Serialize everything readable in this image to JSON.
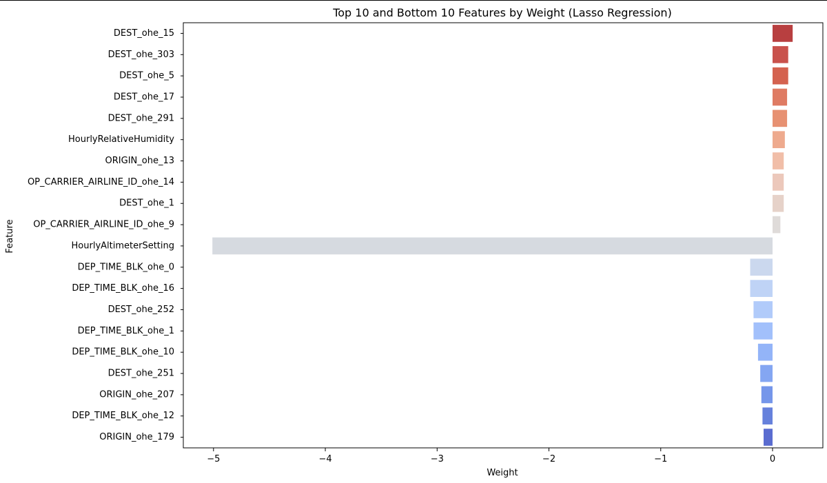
{
  "chart_data": {
    "type": "bar",
    "orientation": "horizontal",
    "title": "Top 10 and Bottom 10 Features by Weight (Lasso Regression)",
    "xlabel": "Weight",
    "ylabel": "Feature",
    "xlim": [
      -5.27,
      0.45
    ],
    "xticks": [
      -5,
      -4,
      -3,
      -2,
      -1,
      0
    ],
    "xtick_labels": [
      "−5",
      "−4",
      "−3",
      "−2",
      "−1",
      "0"
    ],
    "grid": false,
    "categories": [
      "DEST_ohe_15",
      "DEST_ohe_303",
      "DEST_ohe_5",
      "DEST_ohe_17",
      "DEST_ohe_291",
      "HourlyRelativeHumidity",
      "ORIGIN_ohe_13",
      "OP_CARRIER_AIRLINE_ID_ohe_14",
      "DEST_ohe_1",
      "OP_CARRIER_AIRLINE_ID_ohe_9",
      "HourlyAltimeterSetting",
      "DEP_TIME_BLK_ohe_0",
      "DEP_TIME_BLK_ohe_16",
      "DEST_ohe_252",
      "DEP_TIME_BLK_ohe_1",
      "DEP_TIME_BLK_ohe_10",
      "DEST_ohe_251",
      "ORIGIN_ohe_207",
      "DEP_TIME_BLK_ohe_12",
      "ORIGIN_ohe_179"
    ],
    "values": [
      0.18,
      0.14,
      0.14,
      0.13,
      0.13,
      0.11,
      0.1,
      0.1,
      0.1,
      0.07,
      -5.01,
      -0.2,
      -0.2,
      -0.17,
      -0.17,
      -0.13,
      -0.11,
      -0.1,
      -0.09,
      -0.08
    ],
    "colors": [
      "#b83f40",
      "#c9524c",
      "#d4624f",
      "#df7b63",
      "#e79172",
      "#eeaa8e",
      "#f1bea8",
      "#ecc8bb",
      "#e6d2c9",
      "#dfdbd9",
      "#d6dae0",
      "#cbd8ee",
      "#bfd3f6",
      "#b1cbfa",
      "#a2c0fb",
      "#93b4f8",
      "#84a6f2",
      "#7596ea",
      "#6681dc",
      "#5a6cd0"
    ]
  }
}
